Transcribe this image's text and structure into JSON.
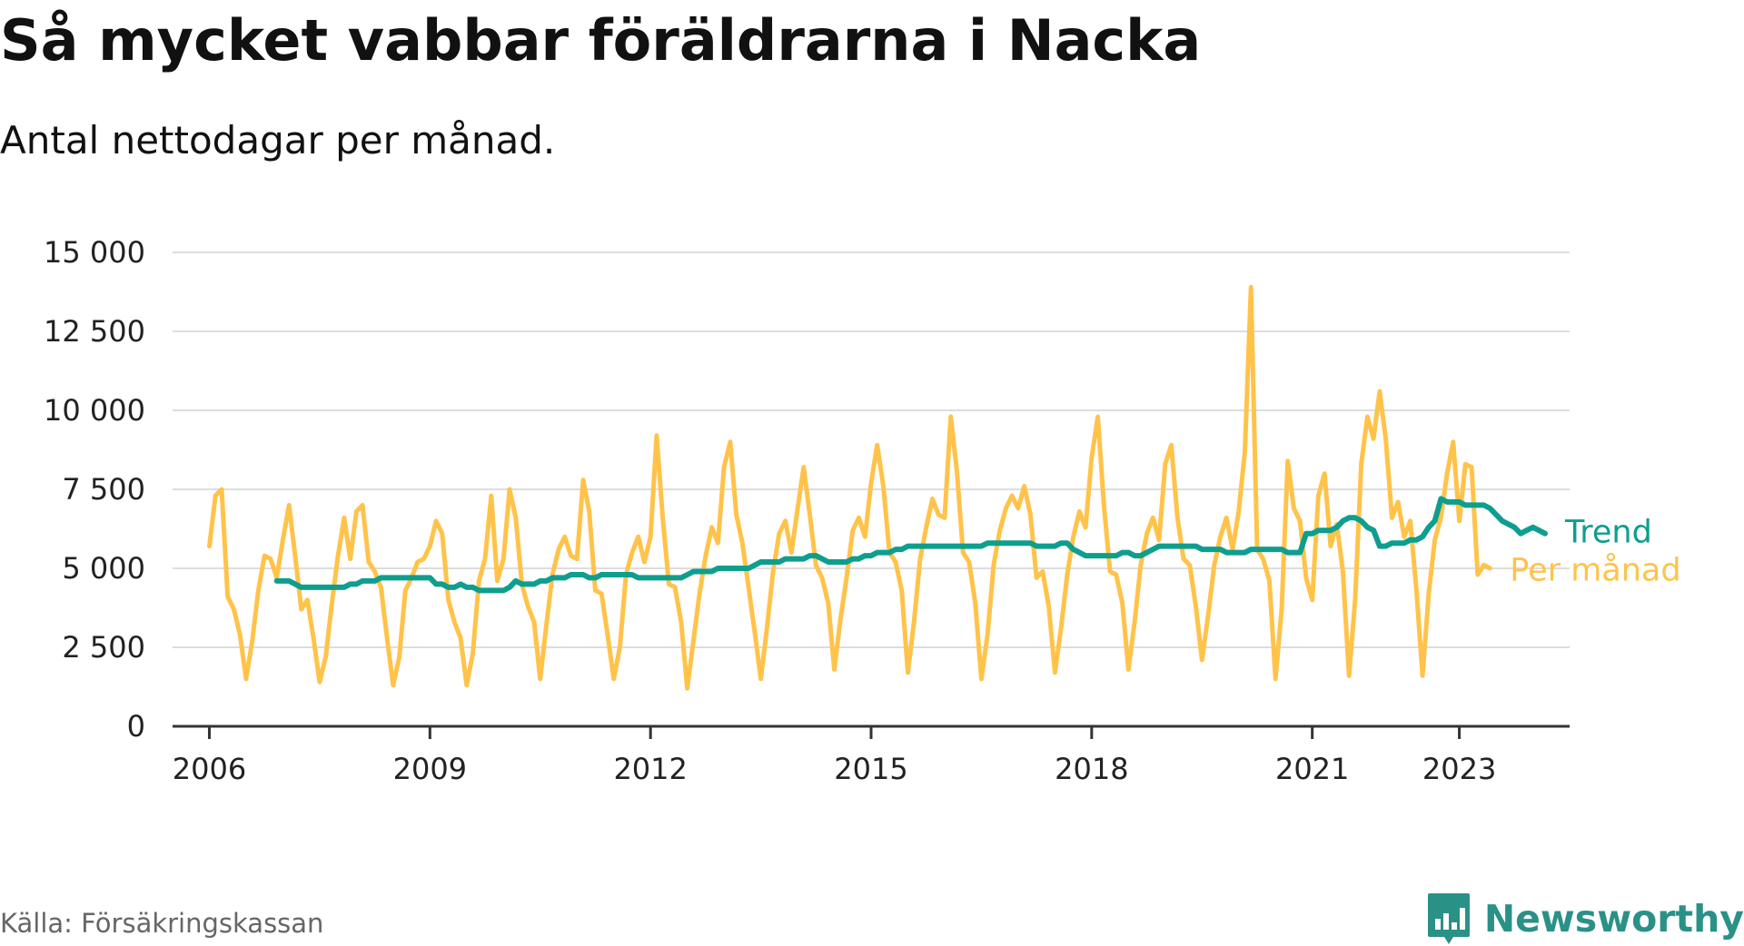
{
  "title": "Så mycket vabbar föräldrarna i Nacka",
  "subtitle": "Antal nettodagar per månad.",
  "source": "Källa: Försäkringskassan",
  "brand": "Newsworthy",
  "colors": {
    "per_manad": "#ffc34a",
    "trend": "#0e9e8e",
    "grid": "#dddddd",
    "axis": "#333333",
    "brand": "#2a9187"
  },
  "chart_data": {
    "type": "line",
    "title": "Så mycket vabbar föräldrarna i Nacka",
    "subtitle": "Antal nettodagar per månad.",
    "xlabel": "",
    "ylabel": "",
    "ylim": [
      0,
      15000
    ],
    "xlim": [
      2005.5,
      2024.5
    ],
    "y_ticks": [
      0,
      2500,
      5000,
      7500,
      10000,
      12500,
      15000
    ],
    "y_tick_labels": [
      "0",
      "2 500",
      "5 000",
      "7 500",
      "10 000",
      "12 500",
      "15 000"
    ],
    "x_ticks": [
      2006,
      2009,
      2012,
      2015,
      2018,
      2021,
      2023
    ],
    "x_tick_labels": [
      "2006",
      "2009",
      "2012",
      "2015",
      "2018",
      "2021",
      "2023"
    ],
    "grid": true,
    "legend": "direct labels at line ends (right)",
    "series": [
      {
        "name": "Per månad",
        "x_start": 2006.0,
        "x_step_months": 1,
        "values": [
          5700,
          7300,
          7500,
          4100,
          3700,
          2900,
          1500,
          2700,
          4300,
          5400,
          5300,
          4700,
          5900,
          7000,
          5400,
          3700,
          4000,
          2800,
          1400,
          2200,
          3900,
          5400,
          6600,
          5300,
          6800,
          7000,
          5200,
          4900,
          4400,
          2800,
          1300,
          2200,
          4300,
          4700,
          5200,
          5300,
          5700,
          6500,
          6100,
          4000,
          3300,
          2800,
          1300,
          2300,
          4600,
          5300,
          7300,
          4600,
          5300,
          7500,
          6600,
          4500,
          3800,
          3300,
          1500,
          3200,
          4800,
          5600,
          6000,
          5400,
          5300,
          7800,
          6800,
          4300,
          4200,
          2900,
          1500,
          2500,
          4800,
          5500,
          6000,
          5200,
          6000,
          9200,
          6600,
          4500,
          4400,
          3300,
          1200,
          2700,
          4200,
          5400,
          6300,
          5800,
          8200,
          9000,
          6700,
          5800,
          4400,
          3000,
          1500,
          3100,
          4900,
          6100,
          6500,
          5500,
          6900,
          8200,
          6700,
          5100,
          4700,
          3900,
          1800,
          3400,
          4700,
          6200,
          6600,
          6000,
          7700,
          8900,
          7600,
          5500,
          5200,
          4300,
          1700,
          3300,
          5300,
          6300,
          7200,
          6700,
          6600,
          9800,
          8100,
          5500,
          5200,
          3900,
          1500,
          2900,
          5100,
          6200,
          6900,
          7300,
          6900,
          7600,
          6700,
          4700,
          4900,
          3800,
          1700,
          3100,
          4800,
          6000,
          6800,
          6300,
          8500,
          9800,
          7000,
          4900,
          4800,
          3900,
          1800,
          3300,
          5100,
          6100,
          6600,
          5900,
          8300,
          8900,
          6600,
          5300,
          5100,
          3800,
          2100,
          3500,
          5100,
          6000,
          6600,
          5600,
          6800,
          8700,
          13900,
          5600,
          5300,
          4600,
          1500,
          3700,
          8400,
          6900,
          6500,
          4700,
          4000,
          7300,
          8000,
          5700,
          6400,
          4900,
          1600,
          4000,
          8300,
          9800,
          9100,
          10600,
          9100,
          6600,
          7100,
          6000,
          6500,
          4300,
          1600,
          4200,
          5900,
          6600,
          8000,
          9000,
          6500,
          8300,
          8200,
          4800,
          5100,
          5000
        ],
        "end_label": "Per månad"
      },
      {
        "name": "Trend",
        "x_start": 2006.917,
        "x_step_months": 1,
        "values": [
          4600,
          4600,
          4600,
          4500,
          4400,
          4400,
          4400,
          4400,
          4400,
          4400,
          4400,
          4400,
          4500,
          4500,
          4600,
          4600,
          4600,
          4700,
          4700,
          4700,
          4700,
          4700,
          4700,
          4700,
          4700,
          4700,
          4500,
          4500,
          4400,
          4400,
          4500,
          4400,
          4400,
          4300,
          4300,
          4300,
          4300,
          4300,
          4400,
          4600,
          4500,
          4500,
          4500,
          4600,
          4600,
          4700,
          4700,
          4700,
          4800,
          4800,
          4800,
          4700,
          4700,
          4800,
          4800,
          4800,
          4800,
          4800,
          4800,
          4700,
          4700,
          4700,
          4700,
          4700,
          4700,
          4700,
          4700,
          4800,
          4900,
          4900,
          4900,
          4900,
          5000,
          5000,
          5000,
          5000,
          5000,
          5000,
          5100,
          5200,
          5200,
          5200,
          5200,
          5300,
          5300,
          5300,
          5300,
          5400,
          5400,
          5300,
          5200,
          5200,
          5200,
          5200,
          5300,
          5300,
          5400,
          5400,
          5500,
          5500,
          5500,
          5600,
          5600,
          5700,
          5700,
          5700,
          5700,
          5700,
          5700,
          5700,
          5700,
          5700,
          5700,
          5700,
          5700,
          5700,
          5800,
          5800,
          5800,
          5800,
          5800,
          5800,
          5800,
          5800,
          5700,
          5700,
          5700,
          5700,
          5800,
          5800,
          5600,
          5500,
          5400,
          5400,
          5400,
          5400,
          5400,
          5400,
          5500,
          5500,
          5400,
          5400,
          5500,
          5600,
          5700,
          5700,
          5700,
          5700,
          5700,
          5700,
          5700,
          5600,
          5600,
          5600,
          5600,
          5500,
          5500,
          5500,
          5500,
          5600,
          5600,
          5600,
          5600,
          5600,
          5600,
          5500,
          5500,
          5500,
          6100,
          6100,
          6200,
          6200,
          6200,
          6300,
          6500,
          6600,
          6600,
          6500,
          6300,
          6200,
          5700,
          5700,
          5800,
          5800,
          5800,
          5900,
          5900,
          6000,
          6300,
          6500,
          7200,
          7100,
          7100,
          7100,
          7000,
          7000,
          7000,
          7000,
          6900,
          6700,
          6500,
          6400,
          6300,
          6100,
          6200,
          6300,
          6200,
          6100
        ],
        "end_label": "Trend"
      }
    ]
  }
}
